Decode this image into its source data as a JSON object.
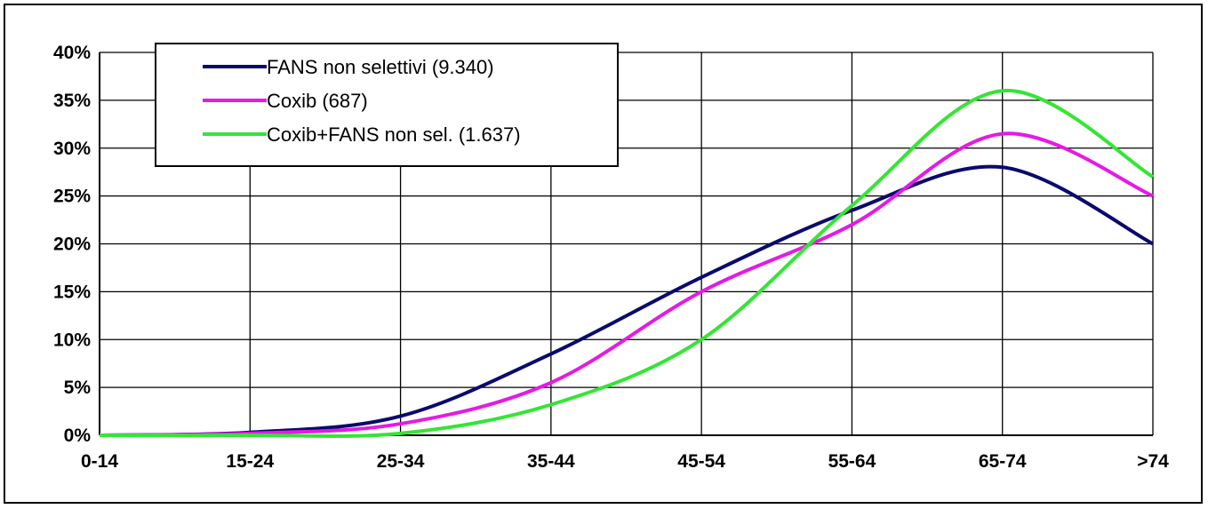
{
  "chart_data": {
    "type": "line",
    "title": "",
    "xlabel": "",
    "ylabel": "",
    "categories": [
      "0-14",
      "15-24",
      "25-34",
      "35-44",
      "45-54",
      "55-64",
      "65-74",
      ">74"
    ],
    "ylim": [
      0,
      40
    ],
    "yticks": [
      "0%",
      "5%",
      "10%",
      "15%",
      "20%",
      "25%",
      "30%",
      "35%",
      "40%"
    ],
    "grid": true,
    "legend_position": "top-left",
    "series": [
      {
        "name": "FANS non selettivi (9.340)",
        "color": "#0a0a6e",
        "values": [
          0,
          0.3,
          2,
          8.5,
          16.5,
          23.5,
          28,
          20
        ]
      },
      {
        "name": "Coxib (687)",
        "color": "#e619e6",
        "values": [
          0,
          0.2,
          1.2,
          5.5,
          15,
          22,
          31.5,
          25
        ]
      },
      {
        "name": "Coxib+FANS non sel. (1.637)",
        "color": "#33e633",
        "values": [
          0,
          0,
          0.2,
          3.2,
          10,
          24,
          36,
          27
        ]
      }
    ]
  }
}
